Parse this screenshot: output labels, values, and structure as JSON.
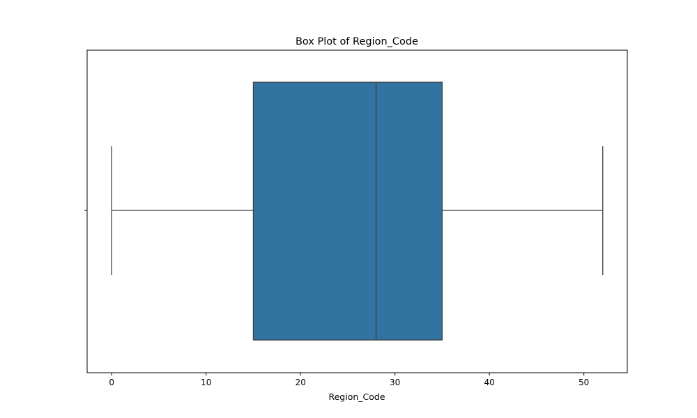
{
  "chart_data": {
    "type": "box",
    "title": "Box Plot of Region_Code",
    "xlabel": "Region_Code",
    "ylabel": "",
    "xlim": [
      -2.6,
      54.6
    ],
    "x_ticks": [
      0,
      10,
      20,
      30,
      40,
      50
    ],
    "grid": false,
    "legend": "none",
    "series": [
      {
        "whisker_low": 0,
        "q1": 15,
        "median": 28,
        "q3": 35,
        "whisker_high": 52
      }
    ],
    "colors": {
      "box_fill": "#3274a1",
      "line": "#3f3f3f",
      "axes": "#000000"
    }
  }
}
